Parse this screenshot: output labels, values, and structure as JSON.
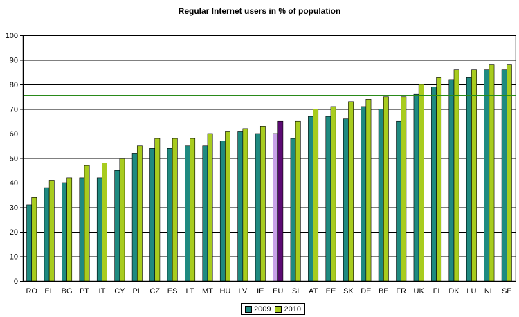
{
  "chart_data": {
    "type": "bar",
    "title": "Regular Internet users in % of population",
    "xlabel": "",
    "ylabel": "",
    "ylim": [
      0,
      100
    ],
    "yticks": [
      0,
      10,
      20,
      30,
      40,
      50,
      60,
      70,
      80,
      90,
      100
    ],
    "categories": [
      "RO",
      "EL",
      "BG",
      "PT",
      "IT",
      "CY",
      "PL",
      "CZ",
      "ES",
      "LT",
      "MT",
      "HU",
      "LV",
      "IE",
      "EU",
      "SI",
      "AT",
      "EE",
      "SK",
      "DE",
      "BE",
      "FR",
      "UK",
      "FI",
      "DK",
      "LU",
      "NL",
      "SE"
    ],
    "series": [
      {
        "name": "2009",
        "color": "#1f8a80",
        "highlight_color": "#c8a2e8",
        "values": [
          31,
          38,
          40,
          42,
          42,
          45,
          52,
          54,
          54,
          55,
          55,
          57,
          61,
          60,
          60,
          58,
          67,
          67,
          66,
          71,
          70,
          65,
          76,
          79,
          82,
          83,
          86,
          86
        ]
      },
      {
        "name": "2010",
        "color": "#a8cc1e",
        "highlight_color": "#5c0a73",
        "values": [
          34,
          41,
          42,
          47,
          48,
          50,
          55,
          58,
          58,
          58,
          60,
          61,
          62,
          63,
          65,
          65,
          70,
          71,
          73,
          74,
          75,
          75,
          80,
          83,
          86,
          86,
          88,
          88
        ]
      }
    ],
    "highlight_category": "EU",
    "reference_line": {
      "value": 75.5,
      "color": "#2a8a1a"
    },
    "legend_position": "bottom-center",
    "grid": true
  }
}
